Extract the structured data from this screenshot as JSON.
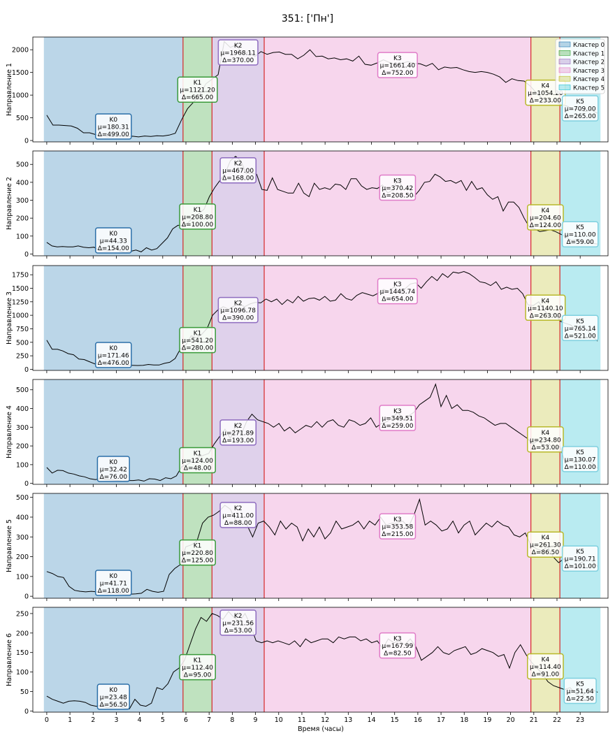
{
  "figure_title": "351: ['Пн']",
  "xlabel": "Время (часы)",
  "x_ticks": [
    0,
    1,
    2,
    3,
    4,
    5,
    6,
    7,
    8,
    9,
    10,
    11,
    12,
    13,
    14,
    15,
    16,
    17,
    18,
    19,
    20,
    21,
    22,
    23
  ],
  "legend": {
    "placement": "top-right of first panel",
    "entries": [
      "Кластер 0",
      "Кластер 1",
      "Кластер 2",
      "Кластер 3",
      "Кластер 4",
      "Кластер 5"
    ]
  },
  "cluster_colors": [
    "#1f77b4",
    "#2ca02c",
    "#9467bd",
    "#e377c2",
    "#bcbd22",
    "#17becf"
  ],
  "boundary_color": "#d62728",
  "chart_data": [
    {
      "type": "line",
      "ylabel": "Направление 1",
      "ylim": [
        -30,
        2280
      ],
      "yticks": [
        0,
        500,
        1000,
        1500,
        2000
      ],
      "clusters": [
        {
          "id": "K0",
          "start": -0.125,
          "end": 5.875,
          "mu": "μ=180.31",
          "delta": "Δ=499.00"
        },
        {
          "id": "K1",
          "start": 5.875,
          "end": 7.125,
          "mu": "μ=1121.20",
          "delta": "Δ=665.00"
        },
        {
          "id": "K2",
          "start": 7.125,
          "end": 9.375,
          "mu": "μ=1968.11",
          "delta": "Δ=370.00"
        },
        {
          "id": "K3",
          "start": 9.375,
          "end": 20.875,
          "mu": "μ=1661.40",
          "delta": "Δ=752.00"
        },
        {
          "id": "K4",
          "start": 20.875,
          "end": 22.125,
          "mu": "μ=1054.20",
          "delta": "Δ=233.00"
        },
        {
          "id": "K5",
          "start": 22.125,
          "end": 23.875,
          "mu": "μ=709.00",
          "delta": "Δ=265.00"
        }
      ],
      "values": [
        560,
        340,
        340,
        330,
        320,
        270,
        170,
        170,
        130,
        100,
        80,
        100,
        100,
        90,
        95,
        80,
        100,
        90,
        105,
        100,
        120,
        160,
        450,
        700,
        850,
        1000,
        1250,
        1350,
        1450,
        2180,
        2050,
        2110,
        1890,
        1960,
        1850,
        1960,
        1900,
        1940,
        1950,
        1900,
        1900,
        1800,
        1880,
        2000,
        1850,
        1860,
        1800,
        1820,
        1780,
        1800,
        1750,
        1860,
        1680,
        1660,
        1710,
        1780,
        1720,
        1670,
        1700,
        1740,
        1700,
        1690,
        1640,
        1700,
        1560,
        1620,
        1600,
        1610,
        1560,
        1520,
        1500,
        1520,
        1500,
        1460,
        1400,
        1280,
        1360,
        1320,
        1310,
        1200,
        1050,
        920,
        860,
        870,
        790,
        760,
        690,
        680,
        640,
        670,
        600
      ]
    },
    {
      "type": "line",
      "ylabel": "Направление 2",
      "ylim": [
        -10,
        575
      ],
      "yticks": [
        0,
        100,
        200,
        300,
        400,
        500
      ],
      "clusters": [
        {
          "id": "K0",
          "start": -0.125,
          "end": 5.875,
          "mu": "μ=44.33",
          "delta": "Δ=154.00"
        },
        {
          "id": "K1",
          "start": 5.875,
          "end": 7.125,
          "mu": "μ=208.80",
          "delta": "Δ=100.00"
        },
        {
          "id": "K2",
          "start": 7.125,
          "end": 9.375,
          "mu": "μ=467.00",
          "delta": "Δ=168.00"
        },
        {
          "id": "K3",
          "start": 9.375,
          "end": 20.875,
          "mu": "μ=370.42",
          "delta": "Δ=208.50"
        },
        {
          "id": "K4",
          "start": 20.875,
          "end": 22.125,
          "mu": "μ=204.60",
          "delta": "Δ=124.00"
        },
        {
          "id": "K5",
          "start": 22.125,
          "end": 23.875,
          "mu": "μ=110.00",
          "delta": "Δ=59.00"
        }
      ],
      "values": [
        65,
        45,
        40,
        42,
        40,
        40,
        45,
        38,
        35,
        38,
        20,
        18,
        16,
        33,
        15,
        8,
        15,
        22,
        12,
        35,
        22,
        30,
        60,
        90,
        140,
        160,
        160,
        175,
        210,
        225,
        250,
        320,
        370,
        410,
        450,
        520,
        545,
        520,
        450,
        450,
        445,
        360,
        355,
        425,
        360,
        350,
        340,
        340,
        395,
        340,
        320,
        395,
        360,
        370,
        360,
        390,
        385,
        360,
        420,
        420,
        380,
        360,
        370,
        365,
        385,
        340,
        360,
        420,
        360,
        370,
        320,
        355,
        400,
        405,
        445,
        430,
        405,
        410,
        395,
        410,
        355,
        405,
        360,
        370,
        330,
        305,
        320,
        240,
        290,
        290,
        260,
        200,
        150,
        140,
        125,
        130,
        135,
        125,
        110,
        95,
        75,
        80,
        70,
        65,
        60,
        55
      ]
    },
    {
      "type": "line",
      "ylabel": "Направление 3",
      "ylim": [
        -20,
        1920
      ],
      "yticks": [
        0,
        250,
        500,
        750,
        1000,
        1250,
        1500,
        1750
      ],
      "clusters": [
        {
          "id": "K0",
          "start": -0.125,
          "end": 5.875,
          "mu": "μ=171.46",
          "delta": "Δ=476.00"
        },
        {
          "id": "K1",
          "start": 5.875,
          "end": 7.125,
          "mu": "μ=541.20",
          "delta": "Δ=280.00"
        },
        {
          "id": "K2",
          "start": 7.125,
          "end": 9.375,
          "mu": "μ=1096.78",
          "delta": "Δ=390.00"
        },
        {
          "id": "K3",
          "start": 9.375,
          "end": 20.875,
          "mu": "μ=1445.74",
          "delta": "Δ=654.00"
        },
        {
          "id": "K4",
          "start": 20.875,
          "end": 22.125,
          "mu": "μ=1140.10",
          "delta": "Δ=263.00"
        },
        {
          "id": "K5",
          "start": 22.125,
          "end": 23.875,
          "mu": "μ=765.14",
          "delta": "Δ=521.00"
        }
      ],
      "values": [
        540,
        370,
        370,
        340,
        290,
        270,
        190,
        180,
        140,
        100,
        140,
        80,
        120,
        100,
        90,
        80,
        75,
        70,
        75,
        90,
        80,
        80,
        110,
        130,
        200,
        380,
        450,
        620,
        580,
        650,
        760,
        1000,
        1100,
        1160,
        1110,
        1170,
        1210,
        1160,
        1210,
        1240,
        1230,
        1300,
        1250,
        1300,
        1200,
        1290,
        1230,
        1350,
        1260,
        1310,
        1320,
        1280,
        1350,
        1260,
        1280,
        1400,
        1310,
        1280,
        1370,
        1420,
        1390,
        1360,
        1410,
        1480,
        1440,
        1530,
        1420,
        1490,
        1580,
        1600,
        1500,
        1620,
        1720,
        1640,
        1770,
        1700,
        1800,
        1780,
        1810,
        1770,
        1700,
        1620,
        1600,
        1550,
        1620,
        1480,
        1520,
        1480,
        1500,
        1400,
        1190,
        1180,
        1250,
        1100,
        980,
        1040,
        890,
        850,
        820,
        720,
        730,
        740,
        620,
        520
      ]
    },
    {
      "type": "line",
      "ylabel": "Направление 4",
      "ylim": [
        -5,
        555
      ],
      "yticks": [
        0,
        100,
        200,
        300,
        400,
        500
      ],
      "clusters": [
        {
          "id": "K0",
          "start": -0.125,
          "end": 5.875,
          "mu": "μ=32.42",
          "delta": "Δ=76.00"
        },
        {
          "id": "K1",
          "start": 5.875,
          "end": 7.125,
          "mu": "μ=124.00",
          "delta": "Δ=48.00"
        },
        {
          "id": "K2",
          "start": 7.125,
          "end": 9.375,
          "mu": "μ=271.89",
          "delta": "Δ=193.00"
        },
        {
          "id": "K3",
          "start": 9.375,
          "end": 20.875,
          "mu": "μ=349.51",
          "delta": "Δ=259.00"
        },
        {
          "id": "K4",
          "start": 20.875,
          "end": 22.125,
          "mu": "μ=234.80",
          "delta": "Δ=53.00"
        },
        {
          "id": "K5",
          "start": 22.125,
          "end": 23.875,
          "mu": "μ=130.07",
          "delta": "Δ=110.00"
        }
      ],
      "values": [
        85,
        55,
        70,
        68,
        55,
        50,
        40,
        35,
        25,
        20,
        25,
        20,
        18,
        16,
        13,
        15,
        15,
        18,
        12,
        25,
        23,
        15,
        30,
        25,
        40,
        90,
        100,
        120,
        140,
        150,
        160,
        210,
        250,
        290,
        240,
        310,
        260,
        330,
        370,
        340,
        330,
        320,
        300,
        320,
        280,
        300,
        270,
        290,
        310,
        300,
        330,
        300,
        330,
        340,
        310,
        300,
        340,
        330,
        310,
        320,
        350,
        300,
        320,
        330,
        350,
        380,
        340,
        360,
        380,
        420,
        440,
        460,
        530,
        410,
        470,
        400,
        420,
        390,
        390,
        380,
        360,
        350,
        330,
        310,
        320,
        320,
        300,
        280,
        260,
        240,
        210,
        230,
        200,
        210,
        180,
        200,
        110,
        120,
        110,
        130,
        120,
        110,
        80
      ]
    },
    {
      "type": "line",
      "ylabel": "Направление 5",
      "ylim": [
        -10,
        520
      ],
      "yticks": [
        0,
        100,
        200,
        300,
        400,
        500
      ],
      "clusters": [
        {
          "id": "K0",
          "start": -0.125,
          "end": 5.875,
          "mu": "μ=41.71",
          "delta": "Δ=118.00"
        },
        {
          "id": "K1",
          "start": 5.875,
          "end": 7.125,
          "mu": "μ=220.80",
          "delta": "Δ=125.00"
        },
        {
          "id": "K2",
          "start": 7.125,
          "end": 9.375,
          "mu": "μ=411.00",
          "delta": "Δ=88.00"
        },
        {
          "id": "K3",
          "start": 9.375,
          "end": 20.875,
          "mu": "μ=353.58",
          "delta": "Δ=215.00"
        },
        {
          "id": "K4",
          "start": 20.875,
          "end": 22.125,
          "mu": "μ=261.30",
          "delta": "Δ=86.50"
        },
        {
          "id": "K5",
          "start": 22.125,
          "end": 23.875,
          "mu": "μ=190.71",
          "delta": "Δ=101.00"
        }
      ],
      "values": [
        125,
        115,
        100,
        95,
        50,
        30,
        25,
        22,
        25,
        22,
        20,
        15,
        18,
        12,
        10,
        10,
        12,
        15,
        35,
        25,
        20,
        25,
        110,
        140,
        160,
        250,
        260,
        280,
        370,
        400,
        410,
        430,
        460,
        440,
        380,
        370,
        360,
        300,
        370,
        380,
        350,
        310,
        380,
        340,
        370,
        350,
        280,
        340,
        300,
        350,
        290,
        320,
        380,
        340,
        350,
        360,
        380,
        340,
        380,
        360,
        400,
        360,
        370,
        370,
        380,
        350,
        410,
        490,
        360,
        380,
        360,
        330,
        340,
        380,
        320,
        360,
        380,
        310,
        340,
        370,
        350,
        380,
        360,
        350,
        310,
        300,
        320,
        260,
        240,
        230,
        250,
        200,
        170,
        190,
        160,
        140,
        170,
        180,
        180,
        150
      ]
    },
    {
      "type": "line",
      "ylabel": "Направление 6",
      "ylim": [
        -3,
        266
      ],
      "yticks": [
        0,
        50,
        100,
        150,
        200,
        250
      ],
      "clusters": [
        {
          "id": "K0",
          "start": -0.125,
          "end": 5.875,
          "mu": "μ=23.48",
          "delta": "Δ=56.50"
        },
        {
          "id": "K1",
          "start": 5.875,
          "end": 7.125,
          "mu": "μ=112.40",
          "delta": "Δ=95.00"
        },
        {
          "id": "K2",
          "start": 7.125,
          "end": 9.375,
          "mu": "μ=231.56",
          "delta": "Δ=53.00"
        },
        {
          "id": "K3",
          "start": 9.375,
          "end": 20.875,
          "mu": "μ=167.99",
          "delta": "Δ=82.50"
        },
        {
          "id": "K4",
          "start": 20.875,
          "end": 22.125,
          "mu": "μ=114.40",
          "delta": "Δ=91.00"
        },
        {
          "id": "K5",
          "start": 22.125,
          "end": 23.875,
          "mu": "μ=51.64",
          "delta": "Δ=22.50"
        }
      ],
      "values": [
        38,
        30,
        25,
        20,
        25,
        26,
        25,
        22,
        15,
        12,
        15,
        8,
        10,
        12,
        8,
        5,
        30,
        15,
        12,
        20,
        60,
        55,
        70,
        100,
        110,
        130,
        170,
        210,
        240,
        230,
        250,
        245,
        235,
        255,
        240,
        230,
        250,
        220,
        180,
        175,
        180,
        175,
        180,
        175,
        170,
        180,
        165,
        185,
        175,
        180,
        185,
        185,
        175,
        190,
        185,
        190,
        190,
        180,
        185,
        175,
        180,
        160,
        185,
        175,
        180,
        170,
        185,
        165,
        130,
        140,
        150,
        165,
        150,
        145,
        155,
        160,
        165,
        145,
        150,
        160,
        155,
        150,
        140,
        145,
        110,
        150,
        170,
        145,
        125,
        110,
        95,
        75,
        65,
        60,
        55,
        60,
        45,
        35,
        50,
        55,
        48
      ]
    }
  ]
}
